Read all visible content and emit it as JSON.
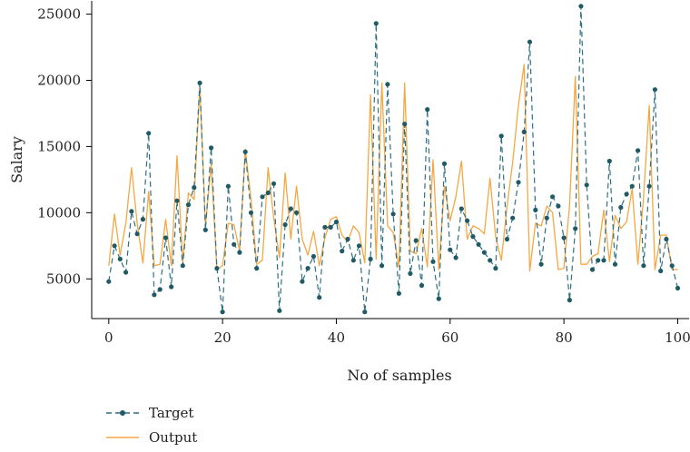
{
  "colors": {
    "target": "#2f6f82",
    "target_marker": "#1f5a66",
    "output": "#f5a742",
    "axis": "#000000"
  },
  "chart_data": {
    "type": "line",
    "xlabel": "No of samples",
    "ylabel": "Salary",
    "xlim": [
      -3,
      102
    ],
    "ylim": [
      2000,
      26000
    ],
    "xticks": [
      0,
      20,
      40,
      60,
      80,
      100
    ],
    "yticks": [
      5000,
      10000,
      15000,
      20000,
      25000
    ],
    "legend": {
      "placement": "below-left"
    },
    "grid": false,
    "series": [
      {
        "name": "Target",
        "style": "dashed-with-markers",
        "x": [
          0,
          1,
          2,
          3,
          4,
          5,
          6,
          7,
          8,
          9,
          10,
          11,
          12,
          13,
          14,
          15,
          16,
          17,
          18,
          19,
          20,
          21,
          22,
          23,
          24,
          25,
          26,
          27,
          28,
          29,
          30,
          31,
          32,
          33,
          34,
          35,
          36,
          37,
          38,
          39,
          40,
          41,
          42,
          43,
          44,
          45,
          46,
          47,
          48,
          49,
          50,
          51,
          52,
          53,
          54,
          55,
          56,
          57,
          58,
          59,
          60,
          61,
          62,
          63,
          64,
          65,
          66,
          67,
          68,
          69,
          70,
          71,
          72,
          73,
          74,
          75,
          76,
          77,
          78,
          79,
          80,
          81,
          82,
          83,
          84,
          85,
          86,
          87,
          88,
          89,
          90,
          91,
          92,
          93,
          94,
          95,
          96,
          97,
          98,
          99,
          100
        ],
        "values": [
          4800,
          7500,
          6500,
          5500,
          10100,
          8400,
          9500,
          16000,
          3800,
          4200,
          8100,
          4400,
          10900,
          6000,
          10600,
          11900,
          19800,
          8700,
          14900,
          5800,
          2500,
          12000,
          7600,
          7000,
          14600,
          10000,
          5800,
          11200,
          11500,
          12200,
          2600,
          9100,
          10300,
          10000,
          4800,
          5800,
          6700,
          3600,
          8900,
          8900,
          9300,
          7100,
          8000,
          6400,
          7500,
          2500,
          6500,
          24300,
          6000,
          19700,
          9900,
          3900,
          16700,
          5400,
          7900,
          4500,
          17800,
          6300,
          3500,
          13700,
          7200,
          6600,
          10300,
          9400,
          8200,
          7600,
          7000,
          6400,
          5800,
          15800,
          8000,
          9600,
          12300,
          16100,
          22900,
          10200,
          6100,
          9600,
          11200,
          10500,
          8100,
          3400,
          8800,
          25600,
          12100,
          5700,
          6400,
          6400,
          13900,
          6100,
          10400,
          11400,
          12000,
          14700,
          6000,
          12000,
          19300,
          5600,
          8000,
          6000,
          4300
        ]
      },
      {
        "name": "Output",
        "style": "solid",
        "x": [
          0,
          1,
          2,
          3,
          4,
          5,
          6,
          7,
          8,
          9,
          10,
          11,
          12,
          13,
          14,
          15,
          16,
          17,
          18,
          19,
          20,
          21,
          22,
          23,
          24,
          25,
          26,
          27,
          28,
          29,
          30,
          31,
          32,
          33,
          34,
          35,
          36,
          37,
          38,
          39,
          40,
          41,
          42,
          43,
          44,
          45,
          46,
          47,
          48,
          49,
          50,
          51,
          52,
          53,
          54,
          55,
          56,
          57,
          58,
          59,
          60,
          61,
          62,
          63,
          64,
          65,
          66,
          67,
          68,
          69,
          70,
          71,
          72,
          73,
          74,
          75,
          76,
          77,
          78,
          79,
          80,
          81,
          82,
          83,
          84,
          85,
          86,
          87,
          88,
          89,
          90,
          91,
          92,
          93,
          94,
          95,
          96,
          97,
          98,
          99,
          100
        ],
        "values": [
          6000,
          9900,
          6800,
          9200,
          13400,
          9200,
          6200,
          11600,
          6000,
          6100,
          9500,
          6000,
          14300,
          6200,
          11500,
          11000,
          19600,
          9000,
          13700,
          5700,
          6000,
          9200,
          9100,
          7100,
          14800,
          11000,
          6100,
          6400,
          13400,
          9600,
          6600,
          13000,
          8000,
          12000,
          8000,
          6800,
          8600,
          6000,
          8100,
          9500,
          9700,
          8300,
          7800,
          9000,
          8500,
          6200,
          18900,
          6500,
          19800,
          9000,
          8500,
          5900,
          19800,
          7100,
          6900,
          8800,
          5900,
          14000,
          5700,
          12000,
          9400,
          11200,
          13900,
          8000,
          9000,
          8800,
          8400,
          12600,
          8200,
          6400,
          10500,
          13800,
          18100,
          21200,
          5600,
          9200,
          9000,
          10500,
          10000,
          5700,
          5800,
          10600,
          20300,
          6100,
          6100,
          6700,
          6900,
          10200,
          6300,
          9800,
          8800,
          9300,
          11800,
          6100,
          11200,
          18100,
          5700,
          8300,
          8300,
          5700,
          5700
        ]
      }
    ]
  }
}
